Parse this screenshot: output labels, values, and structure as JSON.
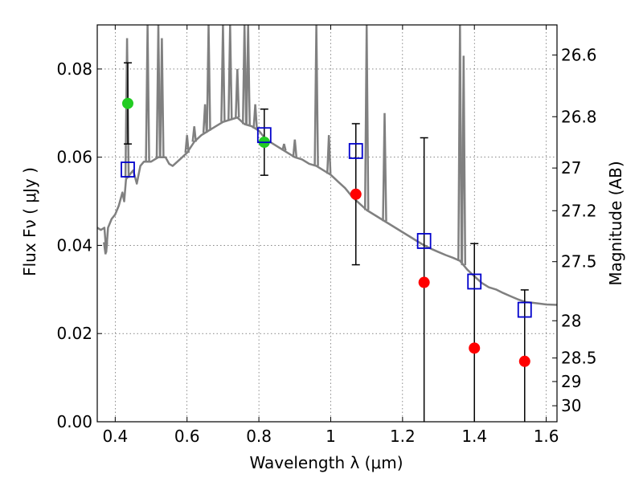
{
  "chart_data": {
    "type": "scatter",
    "xlabel": "Wavelength  λ (μm)",
    "ylabel": "Flux  Fν ( μJy )",
    "ylabel_right": "Magnitude (AB)",
    "xlim": [
      0.35,
      1.63
    ],
    "ylim": [
      0.0,
      0.09
    ],
    "grid": true,
    "x_ticks": [
      {
        "value": 0.4,
        "label": "0.4"
      },
      {
        "value": 0.6,
        "label": "0.6"
      },
      {
        "value": 0.8,
        "label": "0.8"
      },
      {
        "value": 1.0,
        "label": "1"
      },
      {
        "value": 1.2,
        "label": "1.2"
      },
      {
        "value": 1.4,
        "label": "1.4"
      },
      {
        "value": 1.6,
        "label": "1.6"
      }
    ],
    "y_ticks": [
      {
        "value": 0.0,
        "label": "0.00"
      },
      {
        "value": 0.02,
        "label": "0.02"
      },
      {
        "value": 0.04,
        "label": "0.04"
      },
      {
        "value": 0.06,
        "label": "0.06"
      },
      {
        "value": 0.08,
        "label": "0.08"
      }
    ],
    "right_ticks": [
      {
        "value": 26.6,
        "label": "26.6"
      },
      {
        "value": 26.8,
        "label": "26.8"
      },
      {
        "value": 27.0,
        "label": "27"
      },
      {
        "value": 27.2,
        "label": "27.2"
      },
      {
        "value": 27.5,
        "label": "27.5"
      },
      {
        "value": 28.0,
        "label": "28"
      },
      {
        "value": 28.5,
        "label": "28.5"
      },
      {
        "value": 29.0,
        "label": "29"
      },
      {
        "value": 30.0,
        "label": "30"
      }
    ],
    "series": [
      {
        "kind": "line",
        "color": "#808080",
        "points": [
          [
            0.35,
            0.044
          ],
          [
            0.36,
            0.0435
          ],
          [
            0.37,
            0.044
          ],
          [
            0.375,
            0.0385
          ],
          [
            0.38,
            0.044
          ],
          [
            0.39,
            0.046
          ],
          [
            0.4,
            0.047
          ],
          [
            0.41,
            0.049
          ],
          [
            0.42,
            0.052
          ],
          [
            0.425,
            0.05
          ],
          [
            0.43,
            0.055
          ],
          [
            0.44,
            0.056
          ],
          [
            0.45,
            0.057
          ],
          [
            0.46,
            0.054
          ],
          [
            0.47,
            0.058
          ],
          [
            0.48,
            0.059
          ],
          [
            0.5,
            0.059
          ],
          [
            0.52,
            0.06
          ],
          [
            0.54,
            0.06
          ],
          [
            0.55,
            0.0585
          ],
          [
            0.56,
            0.058
          ],
          [
            0.58,
            0.0595
          ],
          [
            0.6,
            0.061
          ],
          [
            0.62,
            0.0635
          ],
          [
            0.64,
            0.065
          ],
          [
            0.66,
            0.066
          ],
          [
            0.68,
            0.067
          ],
          [
            0.7,
            0.068
          ],
          [
            0.72,
            0.0685
          ],
          [
            0.74,
            0.069
          ],
          [
            0.76,
            0.0675
          ],
          [
            0.78,
            0.067
          ],
          [
            0.8,
            0.066
          ],
          [
            0.82,
            0.064
          ],
          [
            0.84,
            0.063
          ],
          [
            0.86,
            0.062
          ],
          [
            0.88,
            0.061
          ],
          [
            0.9,
            0.06
          ],
          [
            0.92,
            0.0595
          ],
          [
            0.94,
            0.0585
          ],
          [
            0.96,
            0.058
          ],
          [
            0.98,
            0.057
          ],
          [
            1.0,
            0.056
          ],
          [
            1.02,
            0.0545
          ],
          [
            1.04,
            0.053
          ],
          [
            1.06,
            0.051
          ],
          [
            1.08,
            0.0495
          ],
          [
            1.1,
            0.048
          ],
          [
            1.12,
            0.047
          ],
          [
            1.14,
            0.046
          ],
          [
            1.16,
            0.045
          ],
          [
            1.18,
            0.044
          ],
          [
            1.2,
            0.043
          ],
          [
            1.22,
            0.042
          ],
          [
            1.24,
            0.041
          ],
          [
            1.26,
            0.04
          ],
          [
            1.28,
            0.0392
          ],
          [
            1.3,
            0.0385
          ],
          [
            1.32,
            0.0378
          ],
          [
            1.34,
            0.0372
          ],
          [
            1.36,
            0.0365
          ],
          [
            1.38,
            0.0345
          ],
          [
            1.4,
            0.033
          ],
          [
            1.42,
            0.0315
          ],
          [
            1.44,
            0.0305
          ],
          [
            1.46,
            0.03
          ],
          [
            1.48,
            0.0292
          ],
          [
            1.5,
            0.0285
          ],
          [
            1.52,
            0.0278
          ],
          [
            1.54,
            0.0272
          ],
          [
            1.56,
            0.027
          ],
          [
            1.58,
            0.0268
          ],
          [
            1.6,
            0.0266
          ],
          [
            1.63,
            0.0265
          ]
        ],
        "spikes": [
          [
            0.373,
            0.038
          ],
          [
            0.433,
            0.087
          ],
          [
            0.49,
            0.09
          ],
          [
            0.52,
            0.09
          ],
          [
            0.53,
            0.087
          ],
          [
            0.6,
            0.065
          ],
          [
            0.62,
            0.067
          ],
          [
            0.65,
            0.072
          ],
          [
            0.66,
            0.09
          ],
          [
            0.7,
            0.09
          ],
          [
            0.72,
            0.09
          ],
          [
            0.74,
            0.08
          ],
          [
            0.76,
            0.09
          ],
          [
            0.77,
            0.09
          ],
          [
            0.79,
            0.072
          ],
          [
            0.87,
            0.063
          ],
          [
            0.9,
            0.064
          ],
          [
            0.96,
            0.09
          ],
          [
            0.995,
            0.065
          ],
          [
            1.1,
            0.09
          ],
          [
            1.15,
            0.07
          ],
          [
            1.36,
            0.09
          ],
          [
            1.37,
            0.083
          ]
        ]
      },
      {
        "kind": "marker",
        "shape": "circle",
        "color": "#22cc22",
        "points": [
          {
            "x": 0.435,
            "y": 0.0722,
            "err": 0.0092
          },
          {
            "x": 0.815,
            "y": 0.0634,
            "err": 0.0075
          }
        ]
      },
      {
        "kind": "marker",
        "shape": "circle",
        "color": "#ff0000",
        "points": [
          {
            "x": 1.07,
            "y": 0.0516,
            "err": 0.016
          },
          {
            "x": 1.26,
            "y": 0.0316,
            "err": 0.0328
          },
          {
            "x": 1.4,
            "y": 0.0167,
            "err": 0.0237
          },
          {
            "x": 1.54,
            "y": 0.0137,
            "err": 0.0162
          }
        ]
      },
      {
        "kind": "marker",
        "shape": "square-open",
        "color": "#0000cc",
        "points": [
          {
            "x": 0.435,
            "y": 0.0572
          },
          {
            "x": 0.815,
            "y": 0.065
          },
          {
            "x": 1.07,
            "y": 0.0614
          },
          {
            "x": 1.26,
            "y": 0.041
          },
          {
            "x": 1.4,
            "y": 0.0318
          },
          {
            "x": 1.54,
            "y": 0.0254
          }
        ]
      }
    ]
  }
}
